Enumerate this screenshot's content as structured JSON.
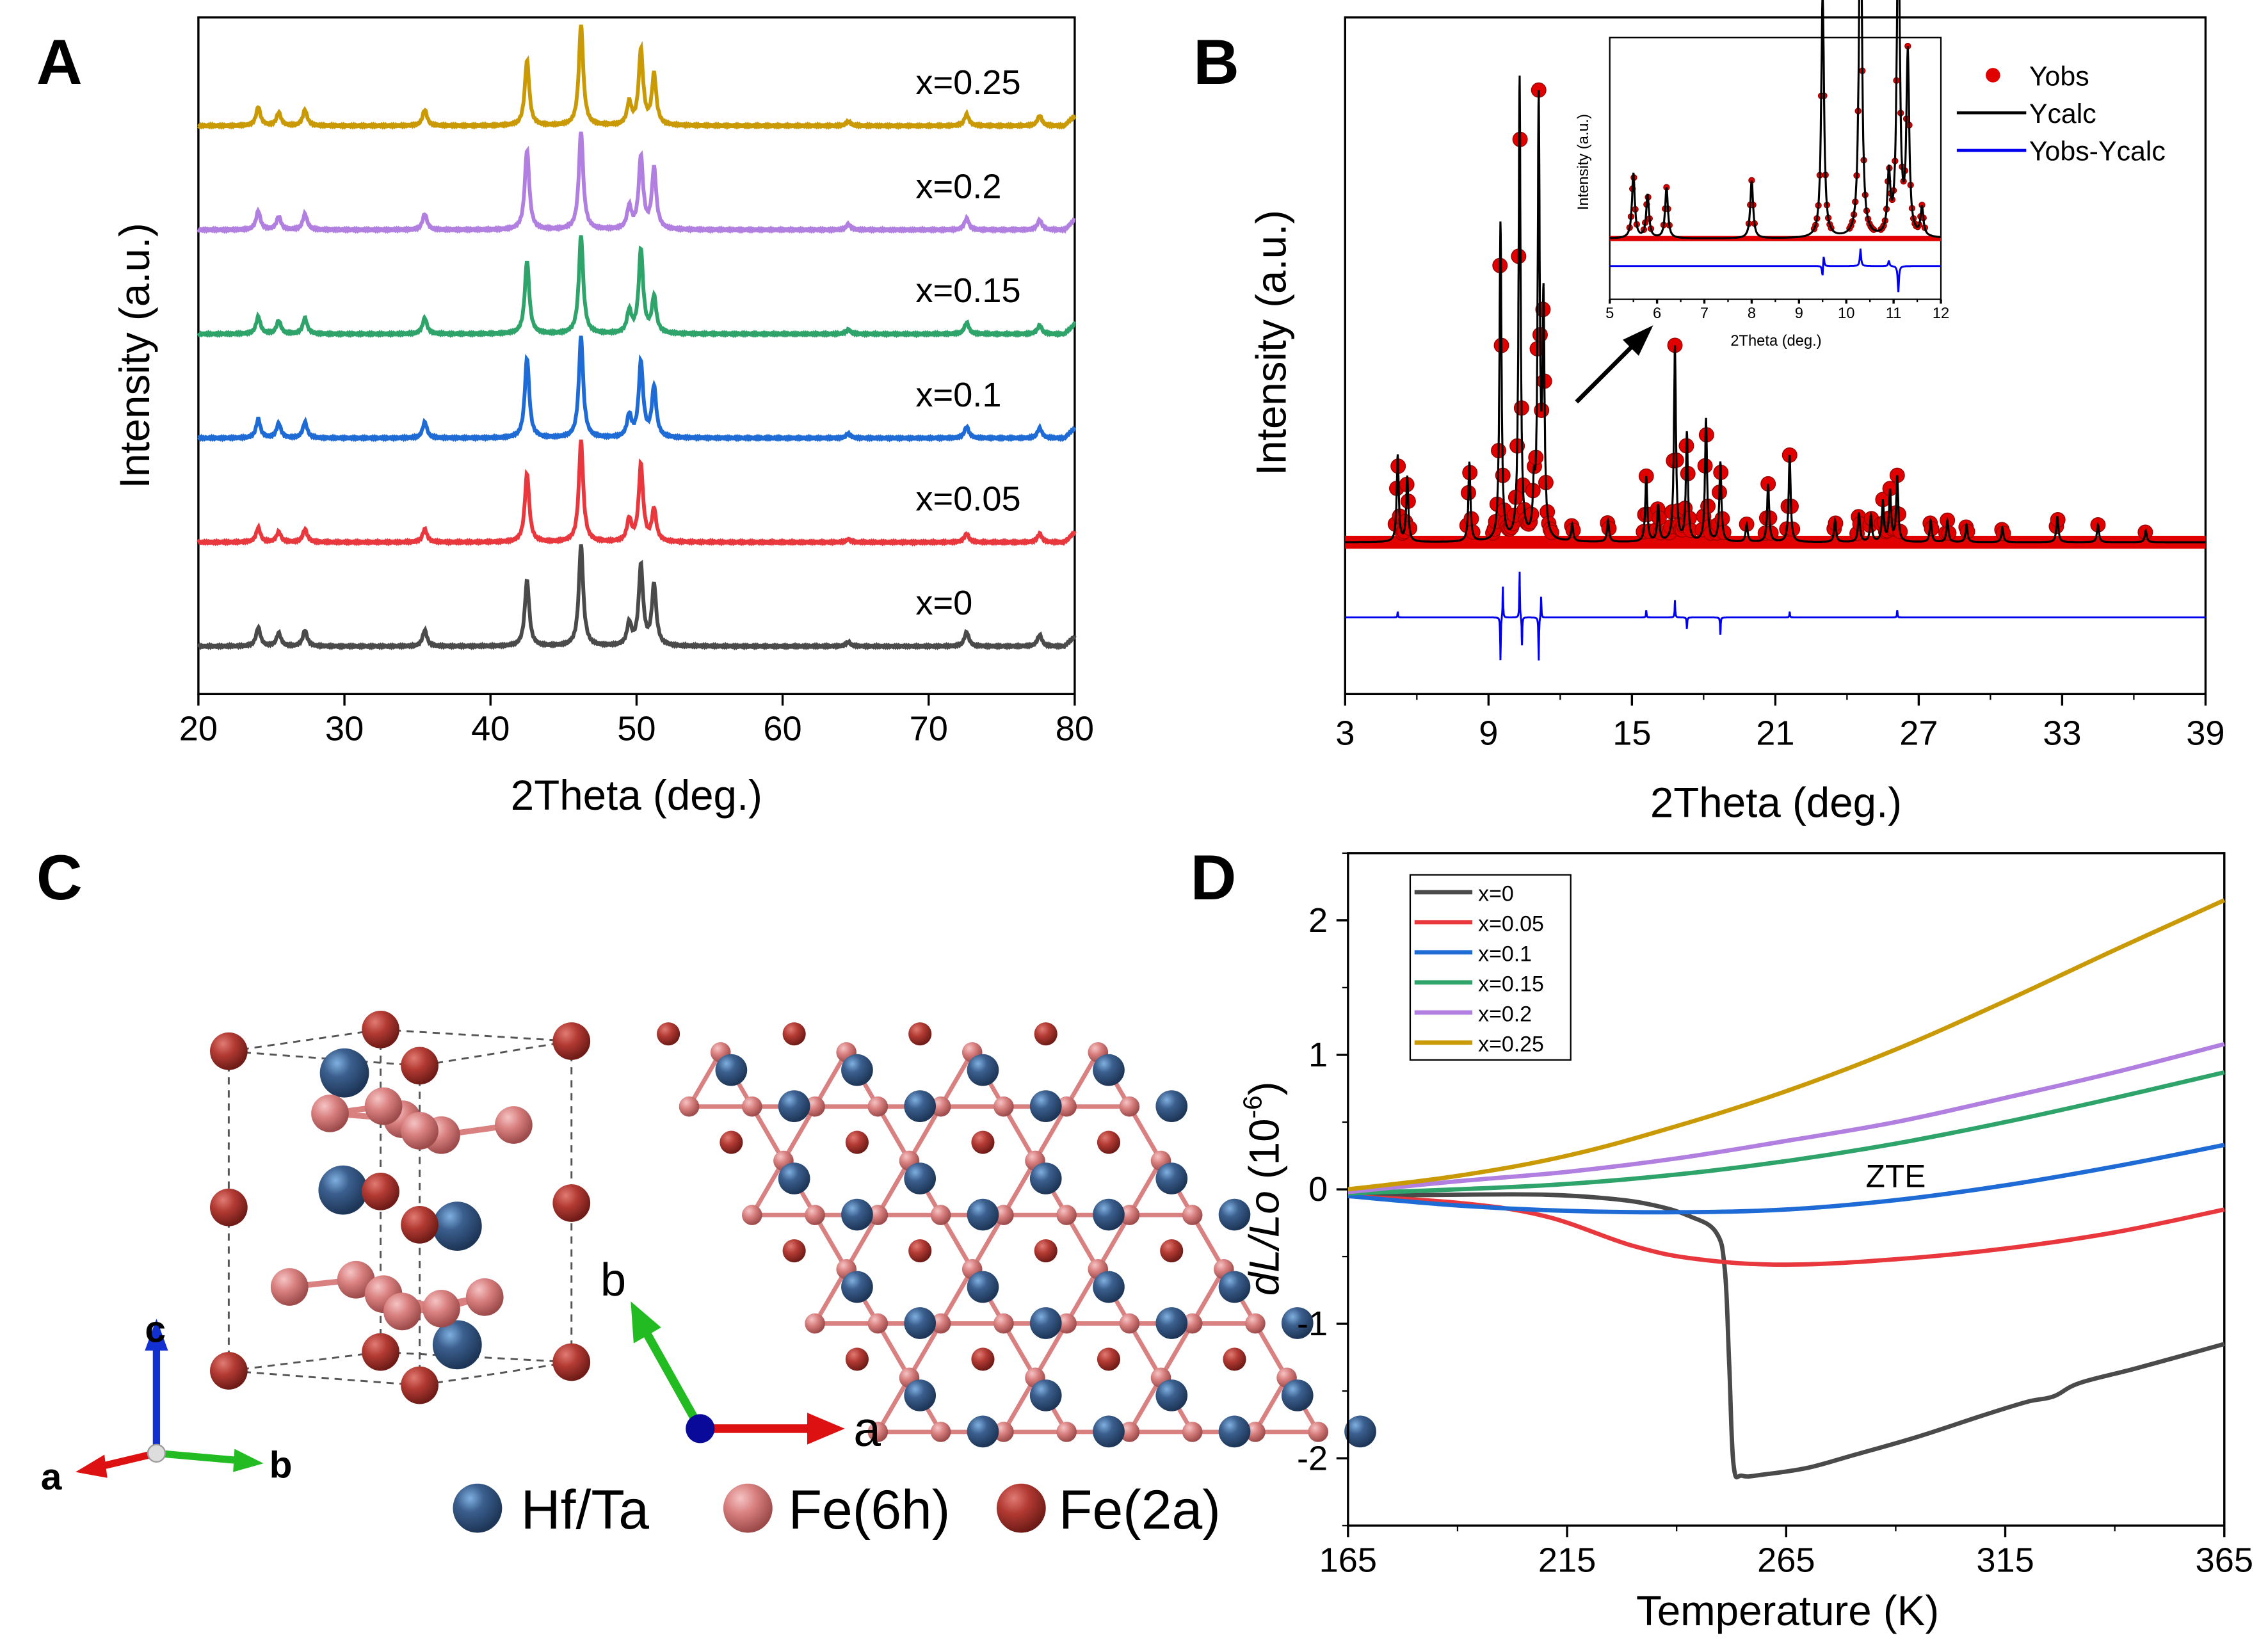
{
  "panels": {
    "a": "A",
    "b": "B",
    "c": "C",
    "d": "D"
  },
  "colors": {
    "x0": "#4a4a4a",
    "x005": "#e8383d",
    "x01": "#1f6bd6",
    "x015": "#2ea36a",
    "x02": "#b07fe0",
    "x025": "#c99a06",
    "obs": "#e00000",
    "calc": "#000000",
    "diff": "#0000ee"
  },
  "chart_data": [
    {
      "id": "A",
      "type": "line",
      "xlabel": "2Theta (deg.)",
      "ylabel": "Intensity (a.u.)",
      "xlim": [
        20,
        80
      ],
      "xticks": [
        20,
        30,
        40,
        50,
        60,
        70,
        80
      ],
      "grid": false,
      "stacked": true,
      "peak_positions": [
        24.1,
        25.5,
        27.3,
        35.5,
        42.5,
        46.2,
        49.5,
        50.3,
        51.2,
        64.5,
        72.6,
        77.6
      ],
      "series": [
        {
          "name": "x=0",
          "color": "#4a4a4a",
          "peak_intensities": [
            13,
            9,
            11,
            11,
            45,
            70,
            15,
            55,
            42,
            3,
            10,
            8
          ]
        },
        {
          "name": "x=0.05",
          "color": "#e8383d",
          "peak_intensities": [
            10,
            7,
            9,
            9,
            47,
            70,
            15,
            53,
            22,
            2,
            6,
            6
          ]
        },
        {
          "name": "x=0.1",
          "color": "#1f6bd6",
          "peak_intensities": [
            13,
            10,
            11,
            11,
            55,
            70,
            15,
            52,
            35,
            3,
            8,
            7
          ]
        },
        {
          "name": "x=0.15",
          "color": "#2ea36a",
          "peak_intensities": [
            12,
            9,
            11,
            11,
            50,
            68,
            15,
            58,
            25,
            3,
            8,
            6
          ]
        },
        {
          "name": "x=0.2",
          "color": "#b07fe0",
          "peak_intensities": [
            13,
            9,
            11,
            11,
            55,
            68,
            15,
            50,
            42,
            4,
            8,
            7
          ]
        },
        {
          "name": "x=0.25",
          "color": "#c99a06",
          "peak_intensities": [
            13,
            9,
            11,
            11,
            45,
            70,
            15,
            52,
            35,
            3,
            8,
            7
          ]
        }
      ]
    },
    {
      "id": "B",
      "type": "scatter",
      "xlabel": "2Theta (deg.)",
      "ylabel": "Intensity (a.u.)",
      "xlim": [
        3,
        39
      ],
      "xticks": [
        3,
        9,
        15,
        21,
        27,
        33,
        39
      ],
      "grid": false,
      "legend": {
        "position": "top-right",
        "entries": [
          "Yobs",
          "Ycalc",
          "Yobs-Ycalc"
        ]
      },
      "peaks": [
        [
          5.2,
          60
        ],
        [
          5.6,
          45
        ],
        [
          8.2,
          55
        ],
        [
          9.5,
          220
        ],
        [
          10.3,
          320
        ],
        [
          10.9,
          30
        ],
        [
          11.1,
          300
        ],
        [
          11.3,
          160
        ],
        [
          12.5,
          12
        ],
        [
          14.0,
          15
        ],
        [
          15.6,
          45
        ],
        [
          16.1,
          25
        ],
        [
          16.8,
          135
        ],
        [
          17.3,
          75
        ],
        [
          18.1,
          85
        ],
        [
          18.7,
          55
        ],
        [
          19.8,
          12
        ],
        [
          20.7,
          40
        ],
        [
          21.6,
          60
        ],
        [
          23.5,
          15
        ],
        [
          24.5,
          20
        ],
        [
          25.0,
          18
        ],
        [
          25.5,
          28
        ],
        [
          25.8,
          35
        ],
        [
          26.1,
          45
        ],
        [
          27.5,
          15
        ],
        [
          28.2,
          15
        ],
        [
          29.0,
          12
        ],
        [
          30.5,
          10
        ],
        [
          32.8,
          18
        ],
        [
          34.5,
          12
        ],
        [
          36.5,
          8
        ]
      ],
      "difference_peaks": [
        [
          5.2,
          4
        ],
        [
          9.5,
          -30
        ],
        [
          9.6,
          22
        ],
        [
          10.3,
          32
        ],
        [
          10.4,
          -20
        ],
        [
          11.1,
          -30
        ],
        [
          11.2,
          15
        ],
        [
          15.6,
          5
        ],
        [
          16.8,
          12
        ],
        [
          17.3,
          -8
        ],
        [
          18.7,
          -12
        ],
        [
          21.6,
          4
        ],
        [
          26.1,
          5
        ]
      ],
      "inset": {
        "xlabel": "2Theta (deg.)",
        "ylabel": "Intensity (a.u.)",
        "xlim": [
          5,
          12
        ],
        "xticks": [
          5,
          6,
          7,
          8,
          9,
          10,
          11,
          12
        ],
        "peaks": [
          [
            5.5,
            45
          ],
          [
            5.8,
            30
          ],
          [
            6.2,
            35
          ],
          [
            8.0,
            40
          ],
          [
            9.5,
            170
          ],
          [
            10.3,
            265
          ],
          [
            10.9,
            42
          ],
          [
            11.1,
            240
          ],
          [
            11.3,
            125
          ],
          [
            11.6,
            20
          ]
        ],
        "difference_peaks": [
          [
            9.5,
            -10
          ],
          [
            9.52,
            10
          ],
          [
            10.3,
            12
          ],
          [
            11.1,
            -18
          ],
          [
            10.9,
            4
          ]
        ]
      }
    },
    {
      "id": "D",
      "type": "line",
      "xlabel": "Temperature (K)",
      "ylabel": {
        "main": "dL/Lo",
        "prefix": " (10",
        "exp": "-6",
        "suffix": ")"
      },
      "xlim": [
        165,
        365
      ],
      "xticks": [
        165,
        215,
        265,
        315,
        365
      ],
      "ylim": [
        -2.5,
        2.5
      ],
      "yticks": [
        -2,
        -1,
        0,
        1,
        2
      ],
      "grid": false,
      "legend": {
        "position": "top-left"
      },
      "annotation": "ZTE",
      "series": [
        {
          "name": "x=0",
          "color": "#4a4a4a",
          "points": [
            [
              165,
              -0.05
            ],
            [
              190,
              -0.04
            ],
            [
              210,
              -0.04
            ],
            [
              225,
              -0.07
            ],
            [
              235,
              -0.12
            ],
            [
              243,
              -0.2
            ],
            [
              249,
              -0.32
            ],
            [
              251,
              -0.6
            ],
            [
              252,
              -1.3
            ],
            [
              253,
              -2.05
            ],
            [
              255,
              -2.13
            ],
            [
              260,
              -2.12
            ],
            [
              270,
              -2.07
            ],
            [
              280,
              -1.98
            ],
            [
              295,
              -1.84
            ],
            [
              310,
              -1.68
            ],
            [
              320,
              -1.58
            ],
            [
              326,
              -1.54
            ],
            [
              332,
              -1.44
            ],
            [
              345,
              -1.33
            ],
            [
              365,
              -1.15
            ]
          ]
        },
        {
          "name": "x=0.05",
          "color": "#e8383d",
          "points": [
            [
              165,
              -0.05
            ],
            [
              190,
              -0.1
            ],
            [
              210,
              -0.2
            ],
            [
              230,
              -0.42
            ],
            [
              245,
              -0.52
            ],
            [
              265,
              -0.56
            ],
            [
              290,
              -0.52
            ],
            [
              315,
              -0.44
            ],
            [
              340,
              -0.32
            ],
            [
              365,
              -0.15
            ]
          ]
        },
        {
          "name": "x=0.1",
          "color": "#1f6bd6",
          "points": [
            [
              165,
              -0.05
            ],
            [
              190,
              -0.12
            ],
            [
              215,
              -0.16
            ],
            [
              240,
              -0.17
            ],
            [
              265,
              -0.15
            ],
            [
              290,
              -0.08
            ],
            [
              315,
              0.03
            ],
            [
              340,
              0.17
            ],
            [
              365,
              0.33
            ]
          ]
        },
        {
          "name": "x=0.15",
          "color": "#2ea36a",
          "points": [
            [
              165,
              -0.03
            ],
            [
              190,
              0.0
            ],
            [
              215,
              0.04
            ],
            [
              240,
              0.11
            ],
            [
              265,
              0.21
            ],
            [
              290,
              0.34
            ],
            [
              315,
              0.5
            ],
            [
              340,
              0.68
            ],
            [
              365,
              0.87
            ]
          ]
        },
        {
          "name": "x=0.2",
          "color": "#b07fe0",
          "points": [
            [
              165,
              -0.02
            ],
            [
              190,
              0.06
            ],
            [
              215,
              0.13
            ],
            [
              240,
              0.23
            ],
            [
              265,
              0.36
            ],
            [
              290,
              0.5
            ],
            [
              315,
              0.68
            ],
            [
              340,
              0.87
            ],
            [
              365,
              1.08
            ]
          ]
        },
        {
          "name": "x=0.25",
          "color": "#c99a06",
          "points": [
            [
              165,
              0.0
            ],
            [
              190,
              0.1
            ],
            [
              215,
              0.25
            ],
            [
              240,
              0.47
            ],
            [
              265,
              0.73
            ],
            [
              290,
              1.04
            ],
            [
              315,
              1.4
            ],
            [
              340,
              1.78
            ],
            [
              365,
              2.15
            ]
          ]
        }
      ]
    }
  ],
  "structure": {
    "legend": [
      {
        "label": "Hf/Ta",
        "color": "#3b5f8e"
      },
      {
        "label": "Fe(6h)",
        "color": "#d98080"
      },
      {
        "label": "Fe(2a)",
        "color": "#b23a33"
      }
    ],
    "axes_left": {
      "a": "a",
      "b": "b",
      "c": "c"
    },
    "axes_right": {
      "a": "a",
      "b": "b"
    }
  }
}
